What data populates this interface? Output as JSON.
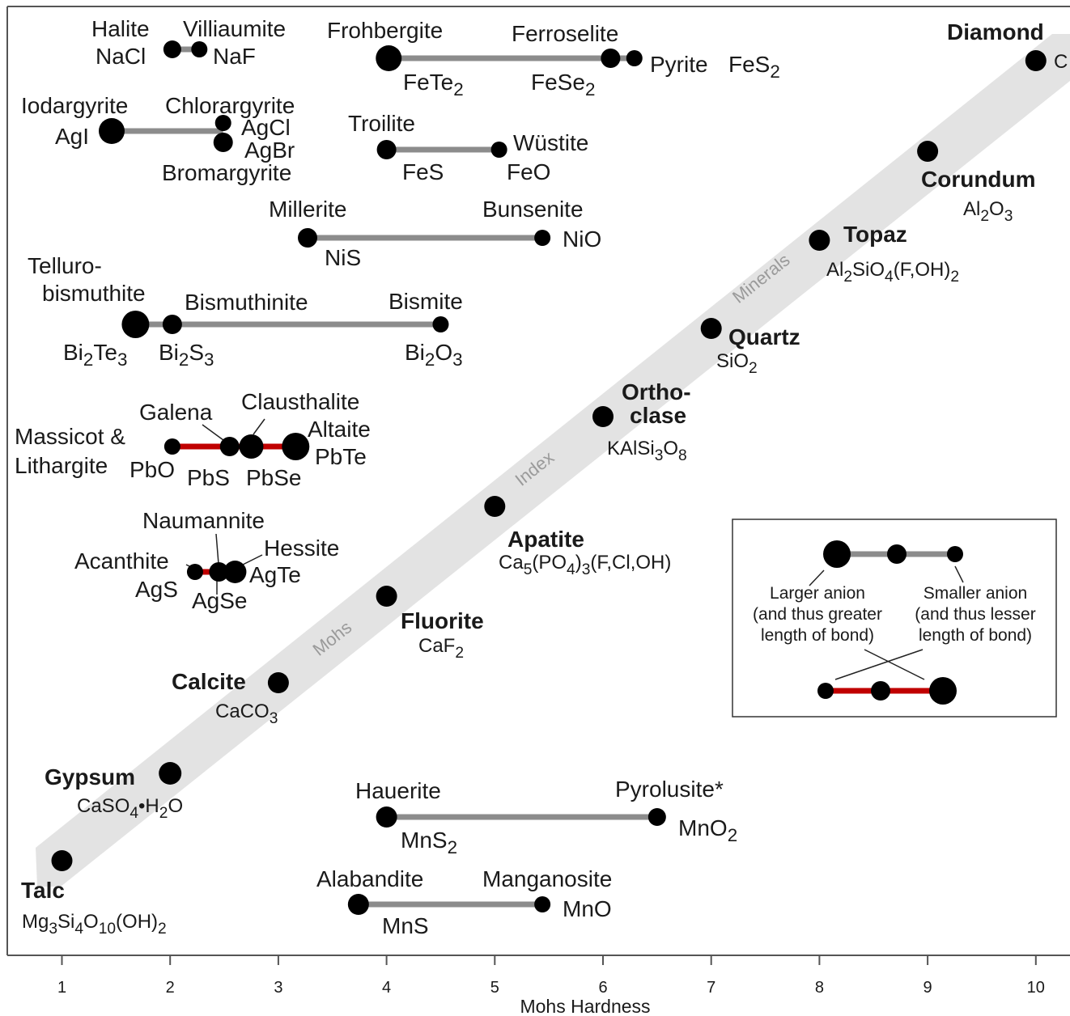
{
  "chart_data": {
    "type": "scatter",
    "xlabel": "Mohs Hardness",
    "xlim": [
      0.5,
      10.3
    ],
    "xticks": [
      "1",
      "2",
      "3",
      "4",
      "5",
      "6",
      "7",
      "8",
      "9",
      "10"
    ],
    "band_label": [
      "Mohs",
      "Index",
      "Minerals"
    ],
    "mohs_minerals": [
      {
        "name": "Talc",
        "formula": "Mg3Si4O10(OH)2",
        "x": 1
      },
      {
        "name": "Gypsum",
        "formula": "CaSO4•H2O",
        "x": 2
      },
      {
        "name": "Calcite",
        "formula": "CaCO3",
        "x": 3
      },
      {
        "name": "Fluorite",
        "formula": "CaF2",
        "x": 4
      },
      {
        "name": "Apatite",
        "formula": "Ca5(PO4)3(F,Cl,OH)",
        "x": 5
      },
      {
        "name": "Ortho-clase",
        "name_lines": [
          "Ortho-",
          "clase"
        ],
        "formula": "KAlSi3O8",
        "x": 6
      },
      {
        "name": "Quartz",
        "formula": "SiO2",
        "x": 7
      },
      {
        "name": "Topaz",
        "formula": "Al2SiO4(F,OH)2",
        "x": 8
      },
      {
        "name": "Corundum",
        "formula": "Al2O3",
        "x": 9
      },
      {
        "name": "Diamond",
        "formula": "C",
        "x": 10
      }
    ],
    "series": [
      {
        "line": "gray",
        "points": [
          {
            "mineral": "Halite",
            "formula": "NaCl",
            "x": 2.02
          },
          {
            "mineral": "Villiaumite",
            "formula": "NaF",
            "x": 2.27
          }
        ]
      },
      {
        "line": "gray",
        "points": [
          {
            "mineral": "Frohbergite",
            "formula": "FeTe2",
            "x": 4.02
          },
          {
            "mineral": "Ferroselite",
            "formula": "FeSe2",
            "x": 6.07
          },
          {
            "mineral": "Pyrite",
            "formula": "FeS2",
            "x": 6.29
          }
        ]
      },
      {
        "line": "gray",
        "points": [
          {
            "mineral": "Iodargyrite",
            "formula": "AgI",
            "x": 1.46
          },
          {
            "mineral": "Chlorargyrite",
            "formula": "AgCl",
            "x": 2.49
          },
          {
            "mineral": "Bromargyrite",
            "formula": "AgBr",
            "x": 2.49
          }
        ]
      },
      {
        "line": "gray",
        "points": [
          {
            "mineral": "Troilite",
            "formula": "FeS",
            "x": 4.0
          },
          {
            "mineral": "Wüstite",
            "formula": "FeO",
            "x": 5.04
          }
        ]
      },
      {
        "line": "gray",
        "points": [
          {
            "mineral": "Millerite",
            "formula": "NiS",
            "x": 3.27
          },
          {
            "mineral": "Bunsenite",
            "formula": "NiO",
            "x": 5.44
          }
        ]
      },
      {
        "line": "gray",
        "points": [
          {
            "mineral": "Telluro-bismuthite",
            "formula": "Bi2Te3",
            "x": 1.68
          },
          {
            "mineral": "Bismuthinite",
            "formula": "Bi2S3",
            "x": 2.02
          },
          {
            "mineral": "Bismite",
            "formula": "Bi2O3",
            "x": 4.5
          }
        ]
      },
      {
        "line": "red",
        "points": [
          {
            "mineral": "Massicot & Lithargite",
            "formula": "PbO",
            "x": 2.02
          },
          {
            "mineral": "Galena",
            "formula": "PbS",
            "x": 2.55
          },
          {
            "mineral": "Clausthalite",
            "formula": "PbSe",
            "x": 2.75
          },
          {
            "mineral": "Altaite",
            "formula": "PbTe",
            "x": 3.16
          }
        ]
      },
      {
        "line": "red",
        "points": [
          {
            "mineral": "Acanthite",
            "formula": "AgS",
            "x": 2.23
          },
          {
            "mineral": "Naumannite",
            "formula": "AgSe",
            "x": 2.45
          },
          {
            "mineral": "Hessite",
            "formula": "AgTe",
            "x": 2.6
          }
        ]
      },
      {
        "line": "gray",
        "points": [
          {
            "mineral": "Hauerite",
            "formula": "MnS2",
            "x": 4.0
          },
          {
            "mineral": "Pyrolusite*",
            "formula": "MnO2",
            "x": 6.5
          }
        ]
      },
      {
        "line": "gray",
        "points": [
          {
            "mineral": "Alabandite",
            "formula": "MnS",
            "x": 3.74
          },
          {
            "mineral": "Manganosite",
            "formula": "MnO",
            "x": 5.44
          }
        ]
      }
    ],
    "legend": {
      "left_label": [
        "Larger anion",
        "(and thus greater",
        "length of bond)"
      ],
      "right_label": [
        "Smaller anion",
        "(and thus lesser",
        "length of bond)"
      ]
    }
  }
}
